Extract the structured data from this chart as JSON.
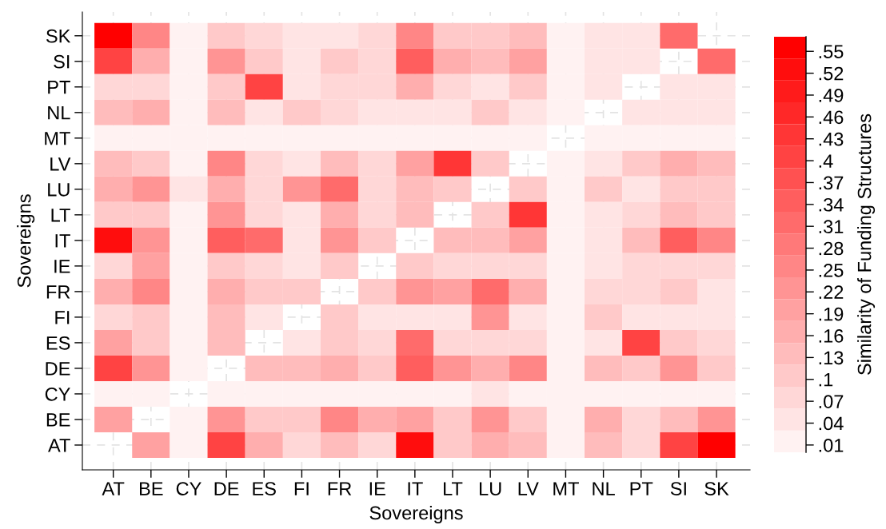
{
  "chart_data": {
    "type": "heatmap",
    "xlabel": "Sovereigns",
    "ylabel": "Sovereigns",
    "clabel": "Similarity of Funding Structures",
    "categories": [
      "AT",
      "BE",
      "CY",
      "DE",
      "ES",
      "FI",
      "FR",
      "IE",
      "IT",
      "LT",
      "LU",
      "LV",
      "MT",
      "NL",
      "PT",
      "SI",
      "SK"
    ],
    "y_categories": [
      "SK",
      "SI",
      "PT",
      "NL",
      "MT",
      "LV",
      "LU",
      "LT",
      "IT",
      "IE",
      "FR",
      "FI",
      "ES",
      "DE",
      "CY",
      "BE",
      "AT"
    ],
    "cells": [
      [
        0.55,
        0.25,
        0.01,
        0.1,
        0.07,
        0.04,
        0.04,
        0.07,
        0.25,
        0.1,
        0.1,
        0.13,
        0.01,
        0.04,
        0.04,
        0.31,
        null
      ],
      [
        0.4,
        0.16,
        0.01,
        0.22,
        0.1,
        0.04,
        0.1,
        0.07,
        0.34,
        0.16,
        0.13,
        0.19,
        0.01,
        0.04,
        0.04,
        null,
        0.31
      ],
      [
        0.07,
        0.07,
        0.01,
        0.1,
        0.4,
        0.04,
        0.07,
        0.07,
        0.16,
        0.07,
        0.04,
        0.1,
        0.01,
        0.04,
        null,
        0.04,
        0.04
      ],
      [
        0.13,
        0.16,
        0.01,
        0.13,
        0.04,
        0.1,
        0.07,
        0.04,
        0.04,
        0.04,
        0.1,
        0.04,
        0.01,
        null,
        0.04,
        0.04,
        0.04
      ],
      [
        0.01,
        0.01,
        0.01,
        0.01,
        0.01,
        0.01,
        0.01,
        0.01,
        0.01,
        0.01,
        0.01,
        0.01,
        null,
        0.01,
        0.01,
        0.01,
        0.01
      ],
      [
        0.13,
        0.1,
        0.01,
        0.25,
        0.07,
        0.04,
        0.13,
        0.07,
        0.19,
        0.43,
        0.1,
        null,
        0.01,
        0.04,
        0.1,
        0.16,
        0.13
      ],
      [
        0.16,
        0.22,
        0.04,
        0.16,
        0.07,
        0.22,
        0.31,
        0.07,
        0.13,
        0.1,
        null,
        0.1,
        0.01,
        0.1,
        0.04,
        0.1,
        0.1
      ],
      [
        0.1,
        0.1,
        0.01,
        0.22,
        0.07,
        0.04,
        0.16,
        0.07,
        0.13,
        null,
        0.1,
        0.43,
        0.01,
        0.04,
        0.07,
        0.13,
        0.1
      ],
      [
        0.52,
        0.22,
        0.01,
        0.34,
        0.31,
        0.04,
        0.22,
        0.1,
        null,
        0.13,
        0.13,
        0.19,
        0.01,
        0.04,
        0.13,
        0.34,
        0.25
      ],
      [
        0.07,
        0.19,
        0.01,
        0.1,
        0.07,
        0.04,
        0.1,
        null,
        0.1,
        0.07,
        0.07,
        0.07,
        0.01,
        0.04,
        0.07,
        0.07,
        0.07
      ],
      [
        0.16,
        0.25,
        0.01,
        0.16,
        0.1,
        0.1,
        null,
        0.1,
        0.22,
        0.19,
        0.31,
        0.16,
        0.01,
        0.07,
        0.07,
        0.1,
        0.04
      ],
      [
        0.07,
        0.1,
        0.01,
        0.13,
        0.04,
        null,
        0.1,
        0.04,
        0.04,
        0.04,
        0.22,
        0.04,
        0.01,
        0.1,
        0.04,
        0.04,
        0.04
      ],
      [
        0.19,
        0.1,
        0.01,
        0.13,
        null,
        0.04,
        0.1,
        0.07,
        0.31,
        0.07,
        0.07,
        0.07,
        0.01,
        0.04,
        0.4,
        0.1,
        0.07
      ],
      [
        0.4,
        0.22,
        0.01,
        null,
        0.13,
        0.13,
        0.16,
        0.1,
        0.34,
        0.22,
        0.16,
        0.25,
        0.01,
        0.13,
        0.1,
        0.22,
        0.1
      ],
      [
        0.01,
        0.01,
        null,
        0.01,
        0.01,
        0.01,
        0.01,
        0.01,
        0.01,
        0.01,
        0.04,
        0.01,
        0.01,
        0.01,
        0.01,
        0.01,
        0.01
      ],
      [
        0.19,
        null,
        0.01,
        0.22,
        0.1,
        0.1,
        0.25,
        0.16,
        0.19,
        0.1,
        0.22,
        0.1,
        0.01,
        0.16,
        0.07,
        0.13,
        0.22
      ],
      [
        null,
        0.19,
        0.01,
        0.4,
        0.16,
        0.07,
        0.13,
        0.07,
        0.52,
        0.1,
        0.16,
        0.13,
        0.01,
        0.13,
        0.07,
        0.4,
        0.55
      ]
    ],
    "clim": [
      0,
      0.57
    ],
    "cticks": [
      {
        "value": 0.01,
        "label": ".01"
      },
      {
        "value": 0.04,
        "label": ".04"
      },
      {
        "value": 0.07,
        "label": ".07"
      },
      {
        "value": 0.1,
        "label": ".1"
      },
      {
        "value": 0.13,
        "label": ".13"
      },
      {
        "value": 0.16,
        "label": ".16"
      },
      {
        "value": 0.19,
        "label": ".19"
      },
      {
        "value": 0.22,
        "label": ".22"
      },
      {
        "value": 0.25,
        "label": ".25"
      },
      {
        "value": 0.28,
        "label": ".28"
      },
      {
        "value": 0.31,
        "label": ".31"
      },
      {
        "value": 0.34,
        "label": ".34"
      },
      {
        "value": 0.37,
        "label": ".37"
      },
      {
        "value": 0.4,
        "label": ".4"
      },
      {
        "value": 0.43,
        "label": ".43"
      },
      {
        "value": 0.46,
        "label": ".46"
      },
      {
        "value": 0.49,
        "label": ".49"
      },
      {
        "value": 0.52,
        "label": ".52"
      },
      {
        "value": 0.55,
        "label": ".55"
      }
    ],
    "color": "#ff0000",
    "grid": true
  }
}
